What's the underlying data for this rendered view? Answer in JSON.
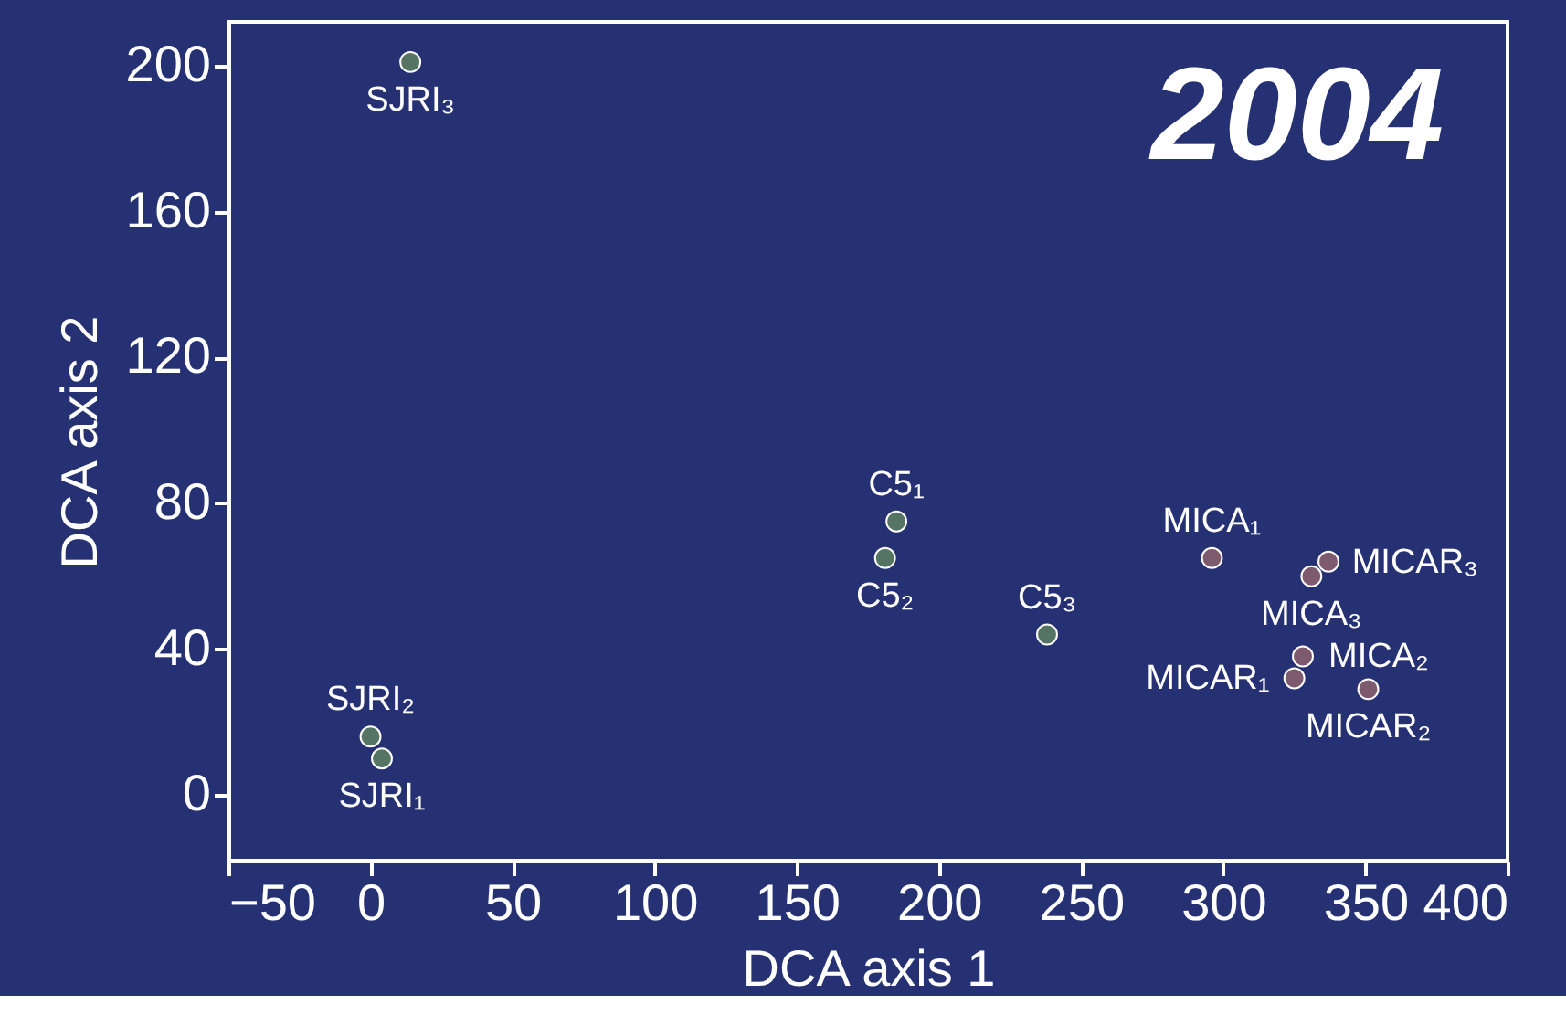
{
  "chart_data": {
    "type": "scatter",
    "xlabel": "DCA axis 1",
    "ylabel": "DCA axis 2",
    "annotations": [
      "2004"
    ],
    "xlim": [
      -50,
      400
    ],
    "xticks": [
      -50,
      0,
      50,
      100,
      150,
      200,
      250,
      300,
      350,
      400
    ],
    "ylim": [
      -18,
      212
    ],
    "yticks": [
      0,
      40,
      80,
      120,
      160,
      200
    ],
    "grid": false,
    "marker": "circle",
    "series": [
      {
        "color": "#567463",
        "x": [
          14,
          0,
          4
        ],
        "values": [
          201,
          16,
          10
        ],
        "value_labels": [
          "SJRI₃",
          "SJRI₂",
          "SJRI₁"
        ]
      },
      {
        "color": "#567463",
        "x": [
          185,
          181,
          238
        ],
        "values": [
          75,
          65,
          44
        ],
        "value_labels": [
          "C5₁",
          "C5₂",
          "C5₃"
        ]
      },
      {
        "color": "#7e5a6e",
        "x": [
          296,
          331,
          337,
          328,
          325,
          351
        ],
        "values": [
          65,
          60,
          64,
          38,
          32,
          29
        ],
        "value_labels": [
          "MICA₁",
          "MICA₃",
          "MICAR₃",
          "MICA₂",
          "MICAR₁",
          "MICAR₂"
        ]
      }
    ]
  }
}
